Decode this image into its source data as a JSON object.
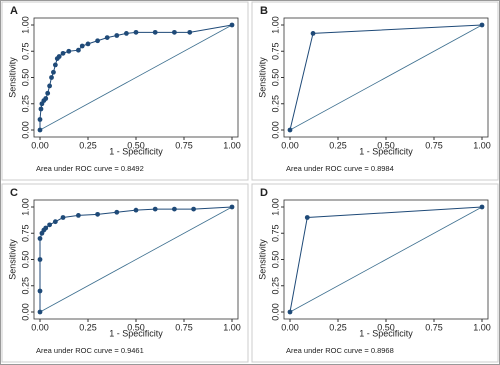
{
  "chart_data": [
    {
      "type": "line",
      "label": "A",
      "xlabel": "1 - Specificity",
      "ylabel": "Sensitivity",
      "note": "Area under ROC curve = 0.8492",
      "color": "#1f4a78",
      "x": [
        0,
        0,
        0.005,
        0.01,
        0.02,
        0.03,
        0.04,
        0.05,
        0.06,
        0.07,
        0.08,
        0.09,
        0.1,
        0.12,
        0.15,
        0.2,
        0.22,
        0.25,
        0.3,
        0.35,
        0.4,
        0.45,
        0.5,
        0.6,
        0.7,
        0.78,
        1
      ],
      "values": [
        0,
        0.1,
        0.2,
        0.25,
        0.28,
        0.3,
        0.35,
        0.42,
        0.5,
        0.55,
        0.62,
        0.68,
        0.7,
        0.73,
        0.75,
        0.76,
        0.8,
        0.82,
        0.85,
        0.88,
        0.9,
        0.92,
        0.93,
        0.93,
        0.93,
        0.93,
        1
      ],
      "xlim": [
        0,
        1
      ],
      "ylim": [
        0,
        1
      ],
      "xticks": [
        {
          "value": 0,
          "label": "0.00"
        },
        {
          "value": 0.25,
          "label": "0.25"
        },
        {
          "value": 0.5,
          "label": "0.50"
        },
        {
          "value": 0.75,
          "label": "0.75"
        },
        {
          "value": 1,
          "label": "1.00"
        }
      ],
      "yticks": [
        {
          "value": 0,
          "label": "0.00"
        },
        {
          "value": 0.25,
          "label": "0.25"
        },
        {
          "value": 0.5,
          "label": "0.50"
        },
        {
          "value": 0.75,
          "label": "0.75"
        },
        {
          "value": 1,
          "label": "1.00"
        }
      ]
    },
    {
      "type": "line",
      "label": "B",
      "xlabel": "1 - Specificity",
      "ylabel": "Sensitivity",
      "note": "Area under ROC curve = 0.8984",
      "color": "#1f4a78",
      "x": [
        0,
        0.12,
        1
      ],
      "values": [
        0,
        0.92,
        1
      ],
      "xlim": [
        0,
        1
      ],
      "ylim": [
        0,
        1
      ],
      "xticks": [
        {
          "value": 0,
          "label": "0.00"
        },
        {
          "value": 0.25,
          "label": "0.25"
        },
        {
          "value": 0.5,
          "label": "0.50"
        },
        {
          "value": 0.75,
          "label": "0.75"
        },
        {
          "value": 1,
          "label": "1.00"
        }
      ],
      "yticks": [
        {
          "value": 0,
          "label": "0.00"
        },
        {
          "value": 0.25,
          "label": "0.25"
        },
        {
          "value": 0.5,
          "label": "0.50"
        },
        {
          "value": 0.75,
          "label": "0.75"
        },
        {
          "value": 1,
          "label": "1.00"
        }
      ]
    },
    {
      "type": "line",
      "label": "C",
      "xlabel": "1 - Specificity",
      "ylabel": "Sensitivity",
      "note": "Area under ROC curve = 0.9461",
      "color": "#1f4a78",
      "x": [
        0,
        0,
        0,
        0,
        0.01,
        0.02,
        0.03,
        0.05,
        0.08,
        0.12,
        0.2,
        0.3,
        0.4,
        0.5,
        0.6,
        0.7,
        0.8,
        1
      ],
      "values": [
        0,
        0.2,
        0.5,
        0.7,
        0.75,
        0.78,
        0.8,
        0.83,
        0.86,
        0.9,
        0.92,
        0.93,
        0.95,
        0.97,
        0.98,
        0.98,
        0.98,
        1
      ],
      "xlim": [
        0,
        1
      ],
      "ylim": [
        0,
        1
      ],
      "xticks": [
        {
          "value": 0,
          "label": "0.00"
        },
        {
          "value": 0.25,
          "label": "0.25"
        },
        {
          "value": 0.5,
          "label": "0.50"
        },
        {
          "value": 0.75,
          "label": "0.75"
        },
        {
          "value": 1,
          "label": "1.00"
        }
      ],
      "yticks": [
        {
          "value": 0,
          "label": "0.00"
        },
        {
          "value": 0.25,
          "label": "0.25"
        },
        {
          "value": 0.5,
          "label": "0.50"
        },
        {
          "value": 0.75,
          "label": "0.75"
        },
        {
          "value": 1,
          "label": "1.00"
        }
      ]
    },
    {
      "type": "line",
      "label": "D",
      "xlabel": "1 - Specificity",
      "ylabel": "Sensitivity",
      "note": "Area under ROC curve = 0.8968",
      "color": "#1f4a78",
      "x": [
        0,
        0.09,
        1
      ],
      "values": [
        0,
        0.9,
        1
      ],
      "xlim": [
        0,
        1
      ],
      "ylim": [
        0,
        1
      ],
      "xticks": [
        {
          "value": 0,
          "label": "0.00"
        },
        {
          "value": 0.25,
          "label": "0.25"
        },
        {
          "value": 0.5,
          "label": "0.50"
        },
        {
          "value": 0.75,
          "label": "0.75"
        },
        {
          "value": 1,
          "label": "1.00"
        }
      ],
      "yticks": [
        {
          "value": 0,
          "label": "0.00"
        },
        {
          "value": 0.25,
          "label": "0.25"
        },
        {
          "value": 0.5,
          "label": "0.50"
        },
        {
          "value": 0.75,
          "label": "0.75"
        },
        {
          "value": 1,
          "label": "1.00"
        }
      ]
    }
  ]
}
